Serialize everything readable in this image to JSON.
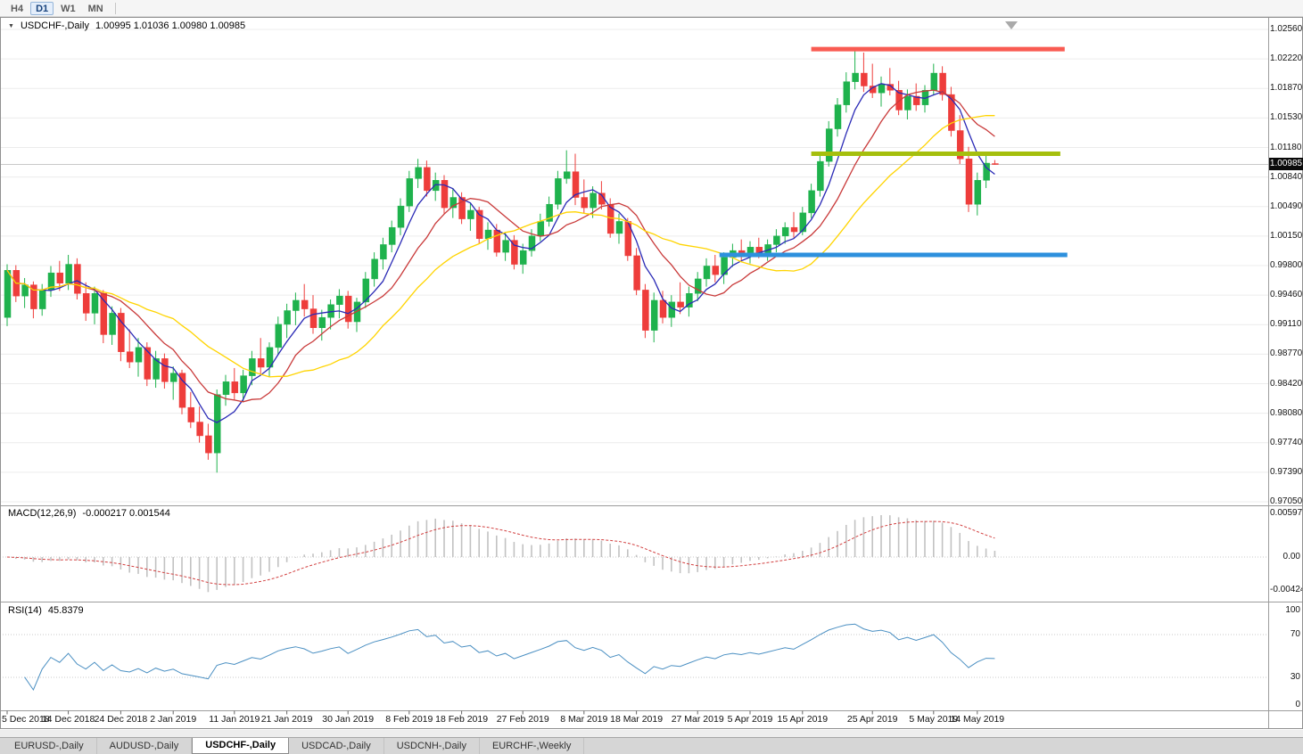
{
  "toolbar": {
    "timeframes": [
      "H4",
      "D1",
      "W1",
      "MN"
    ],
    "active_timeframe": "D1"
  },
  "chart": {
    "collapse_icon": "▼",
    "symbol_title": "USDCHF-,Daily",
    "ohlc_text": "1.00995 1.01036 1.00980 1.00985",
    "current_price": "1.00985",
    "price_scale": [
      "1.02560",
      "1.02220",
      "1.01870",
      "1.01530",
      "1.01180",
      "1.00840",
      "1.00490",
      "1.00150",
      "0.99800",
      "0.99460",
      "0.99110",
      "0.98770",
      "0.98420",
      "0.98080",
      "0.97740",
      "0.97390",
      "0.97050"
    ],
    "macd_label": "MACD(12,26,9)",
    "macd_values": "-0.000217 0.001544",
    "macd_scale": [
      "0.00597",
      "0.00",
      "-0.00424"
    ],
    "rsi_label": "RSI(14)",
    "rsi_value": "45.8379",
    "rsi_scale": [
      "100",
      "70",
      "30",
      "0"
    ]
  },
  "tabs": [
    {
      "label": "EURUSD-,Daily",
      "active": false
    },
    {
      "label": "AUDUSD-,Daily",
      "active": false
    },
    {
      "label": "USDCHF-,Daily",
      "active": true
    },
    {
      "label": "USDCAD-,Daily",
      "active": false
    },
    {
      "label": "USDCNH-,Daily",
      "active": false
    },
    {
      "label": "EURCHF-,Weekly",
      "active": false
    }
  ],
  "chart_data": {
    "type": "candlestick",
    "title": "USDCHF-,Daily",
    "y_range": [
      0.9705,
      1.0256
    ],
    "candle_colors": {
      "bull": "#1fb24d",
      "bear": "#ee3d3b"
    },
    "x_labels": [
      "5 Dec 2018",
      "14 Dec 2018",
      "24 Dec 2018",
      "2 Jan 2019",
      "11 Jan 2019",
      "21 Jan 2019",
      "30 Jan 2019",
      "8 Feb 2019",
      "18 Feb 2019",
      "27 Feb 2019",
      "8 Mar 2019",
      "18 Mar 2019",
      "27 Mar 2019",
      "5 Apr 2019",
      "15 Apr 2019",
      "25 Apr 2019",
      "5 May 2019",
      "14 May 2019"
    ],
    "x_label_bar_indices": [
      0,
      7,
      13,
      19,
      26,
      32,
      39,
      46,
      52,
      59,
      66,
      72,
      79,
      85,
      91,
      99,
      106,
      111
    ],
    "ohlc": [
      [
        0.992,
        0.9982,
        0.991,
        0.9975
      ],
      [
        0.9975,
        0.9981,
        0.9938,
        0.9945
      ],
      [
        0.9945,
        0.9966,
        0.9931,
        0.9958
      ],
      [
        0.9958,
        0.9962,
        0.9919,
        0.993
      ],
      [
        0.993,
        0.9959,
        0.9922,
        0.9952
      ],
      [
        0.9952,
        0.998,
        0.9944,
        0.9972
      ],
      [
        0.9972,
        0.9986,
        0.9951,
        0.996
      ],
      [
        0.996,
        0.9993,
        0.9952,
        0.9982
      ],
      [
        0.9982,
        0.9989,
        0.9941,
        0.9948
      ],
      [
        0.9948,
        0.9961,
        0.9916,
        0.9925
      ],
      [
        0.9925,
        0.9956,
        0.9912,
        0.9948
      ],
      [
        0.9948,
        0.9952,
        0.989,
        0.99
      ],
      [
        0.99,
        0.9933,
        0.9888,
        0.9925
      ],
      [
        0.9925,
        0.9931,
        0.9869,
        0.988
      ],
      [
        0.988,
        0.9906,
        0.9861,
        0.9868
      ],
      [
        0.9868,
        0.9896,
        0.9851,
        0.9885
      ],
      [
        0.9885,
        0.9891,
        0.984,
        0.9848
      ],
      [
        0.9848,
        0.9881,
        0.9838,
        0.9872
      ],
      [
        0.9872,
        0.9878,
        0.9837,
        0.9845
      ],
      [
        0.9845,
        0.9863,
        0.9824,
        0.9855
      ],
      [
        0.9855,
        0.9859,
        0.9807,
        0.9815
      ],
      [
        0.9815,
        0.9833,
        0.9791,
        0.9798
      ],
      [
        0.9798,
        0.9816,
        0.9774,
        0.9782
      ],
      [
        0.9782,
        0.9796,
        0.9754,
        0.9762
      ],
      [
        0.9762,
        0.9836,
        0.9739,
        0.983
      ],
      [
        0.983,
        0.9853,
        0.9817,
        0.9845
      ],
      [
        0.9845,
        0.9861,
        0.9824,
        0.9832
      ],
      [
        0.9832,
        0.9859,
        0.9821,
        0.9852
      ],
      [
        0.9852,
        0.9881,
        0.9841,
        0.9872
      ],
      [
        0.9872,
        0.9896,
        0.9854,
        0.9862
      ],
      [
        0.9862,
        0.9891,
        0.9851,
        0.9885
      ],
      [
        0.9885,
        0.9921,
        0.9876,
        0.9912
      ],
      [
        0.9912,
        0.9936,
        0.9896,
        0.9928
      ],
      [
        0.9928,
        0.9949,
        0.9911,
        0.994
      ],
      [
        0.994,
        0.9959,
        0.9921,
        0.993
      ],
      [
        0.993,
        0.9946,
        0.9901,
        0.9908
      ],
      [
        0.9908,
        0.9929,
        0.9893,
        0.992
      ],
      [
        0.992,
        0.9941,
        0.9906,
        0.9935
      ],
      [
        0.9935,
        0.9953,
        0.9919,
        0.9945
      ],
      [
        0.9945,
        0.9951,
        0.9907,
        0.9915
      ],
      [
        0.9915,
        0.9943,
        0.9903,
        0.9938
      ],
      [
        0.9938,
        0.9973,
        0.9931,
        0.9965
      ],
      [
        0.9965,
        0.9996,
        0.9956,
        0.9988
      ],
      [
        0.9988,
        1.0013,
        0.9976,
        1.0005
      ],
      [
        1.0005,
        1.0033,
        0.9996,
        1.0025
      ],
      [
        1.0025,
        1.0059,
        1.0016,
        1.005
      ],
      [
        1.005,
        1.0091,
        1.0043,
        1.0082
      ],
      [
        1.0082,
        1.0105,
        1.0071,
        1.0095
      ],
      [
        1.0095,
        1.0103,
        1.0061,
        1.0068
      ],
      [
        1.0068,
        1.0089,
        1.0056,
        1.008
      ],
      [
        1.008,
        1.0086,
        1.0041,
        1.0048
      ],
      [
        1.0048,
        1.0071,
        1.0036,
        1.006
      ],
      [
        1.006,
        1.0066,
        1.0029,
        1.0035
      ],
      [
        1.0035,
        1.0053,
        1.0021,
        1.0045
      ],
      [
        1.0045,
        1.0049,
        1.0006,
        1.0012
      ],
      [
        1.0012,
        1.0031,
        0.9999,
        1.0022
      ],
      [
        1.0022,
        1.0029,
        0.9991,
        0.9996
      ],
      [
        0.9996,
        1.0019,
        0.9986,
        1.001
      ],
      [
        1.001,
        1.0016,
        0.9976,
        0.9982
      ],
      [
        0.9982,
        1.0006,
        0.9971,
        0.9998
      ],
      [
        0.9998,
        1.0023,
        0.9991,
        1.0015
      ],
      [
        1.0015,
        1.0041,
        1.0009,
        1.0032
      ],
      [
        1.0032,
        1.0061,
        1.0026,
        1.0052
      ],
      [
        1.0052,
        1.0091,
        1.0046,
        1.0082
      ],
      [
        1.0082,
        1.0115,
        1.0076,
        1.009
      ],
      [
        1.009,
        1.0111,
        1.0051,
        1.006
      ],
      [
        1.006,
        1.0081,
        1.0041,
        1.0048
      ],
      [
        1.0048,
        1.0073,
        1.0036,
        1.0065
      ],
      [
        1.0065,
        1.0079,
        1.0046,
        1.0052
      ],
      [
        1.0052,
        1.0059,
        1.0013,
        1.0018
      ],
      [
        1.0018,
        1.0041,
        1.0006,
        1.0032
      ],
      [
        1.0032,
        1.0036,
        0.9986,
        0.9992
      ],
      [
        0.9992,
        1.0001,
        0.9946,
        0.9952
      ],
      [
        0.9952,
        0.9959,
        0.9896,
        0.9905
      ],
      [
        0.9905,
        0.9949,
        0.9891,
        0.994
      ],
      [
        0.994,
        0.9951,
        0.9913,
        0.992
      ],
      [
        0.992,
        0.9946,
        0.9909,
        0.9938
      ],
      [
        0.9938,
        0.9961,
        0.9924,
        0.9932
      ],
      [
        0.9932,
        0.9956,
        0.9921,
        0.9948
      ],
      [
        0.9948,
        0.9973,
        0.9939,
        0.9965
      ],
      [
        0.9965,
        0.9989,
        0.9956,
        0.998
      ],
      [
        0.998,
        0.9993,
        0.9961,
        0.997
      ],
      [
        0.997,
        0.9996,
        0.9959,
        0.999
      ],
      [
        0.999,
        1.0006,
        0.9979,
        0.9998
      ],
      [
        0.9998,
        1.0011,
        0.9986,
        0.9992
      ],
      [
        0.9992,
        1.0009,
        0.9983,
        1.0002
      ],
      [
        1.0002,
        1.0013,
        0.9989,
        0.9995
      ],
      [
        0.9995,
        1.0011,
        0.9986,
        1.0005
      ],
      [
        1.0005,
        1.0023,
        0.9996,
        1.0015
      ],
      [
        1.0015,
        1.0031,
        1.0006,
        1.0025
      ],
      [
        1.0025,
        1.0043,
        1.0013,
        1.002
      ],
      [
        1.002,
        1.0049,
        1.0016,
        1.0042
      ],
      [
        1.0042,
        1.0076,
        1.0036,
        1.0068
      ],
      [
        1.0068,
        1.0111,
        1.0061,
        1.0102
      ],
      [
        1.0102,
        1.0149,
        1.0096,
        1.014
      ],
      [
        1.014,
        1.0176,
        1.0131,
        1.0168
      ],
      [
        1.0168,
        1.0206,
        1.0159,
        1.0195
      ],
      [
        1.0195,
        1.0232,
        1.0186,
        1.0205
      ],
      [
        1.0205,
        1.0229,
        1.0183,
        1.019
      ],
      [
        1.019,
        1.0216,
        1.0176,
        1.0182
      ],
      [
        1.0182,
        1.0201,
        1.0166,
        1.0192
      ],
      [
        1.0192,
        1.0211,
        1.0179,
        1.0185
      ],
      [
        1.0185,
        1.0196,
        1.0156,
        1.0162
      ],
      [
        1.0162,
        1.0186,
        1.0151,
        1.0178
      ],
      [
        1.0178,
        1.0193,
        1.0161,
        1.0168
      ],
      [
        1.0168,
        1.0191,
        1.0159,
        1.0185
      ],
      [
        1.0185,
        1.0216,
        1.0179,
        1.0205
      ],
      [
        1.0205,
        1.0213,
        1.0173,
        1.018
      ],
      [
        1.018,
        1.0189,
        1.0131,
        1.0138
      ],
      [
        1.0138,
        1.0156,
        1.0099,
        1.0105
      ],
      [
        1.0105,
        1.0119,
        1.0043,
        1.0052
      ],
      [
        1.0052,
        1.0089,
        1.0039,
        1.008
      ],
      [
        1.008,
        1.0109,
        1.0071,
        1.01
      ],
      [
        1.00995,
        1.01036,
        1.0098,
        1.00985
      ]
    ],
    "moving_averages": [
      {
        "name": "fast-ma",
        "period": 5,
        "color": "#2a2ab6"
      },
      {
        "name": "medium-ma",
        "period": 10,
        "color": "#c93a3a"
      },
      {
        "name": "slow-ma",
        "period": 20,
        "color": "#ffd400"
      }
    ],
    "overlay_lines": [
      {
        "name": "resistance-line",
        "price": 1.0233,
        "from_bar": 92,
        "to_bar": 121,
        "color": "#f95b52",
        "width": 5
      },
      {
        "name": "broken-support-line",
        "price": 1.0111,
        "from_bar": 92,
        "to_bar": 120.5,
        "color": "#a5bf0d",
        "width": 5
      },
      {
        "name": "support-line",
        "price": 0.9993,
        "from_bar": 81.5,
        "to_bar": 121.3,
        "color": "#2d90dd",
        "width": 5
      }
    ],
    "indicators": [
      {
        "type": "MACD",
        "fast": 12,
        "slow": 26,
        "signal": 9,
        "histogram_color": "#c2c2c2",
        "signal_color": "#d24040",
        "y_range": [
          -0.00424,
          0.00597
        ],
        "current": "-0.000217 0.001544"
      },
      {
        "type": "RSI",
        "period": 14,
        "color": "#4a8fc2",
        "levels": [
          30,
          70
        ],
        "y_range": [
          0,
          100
        ],
        "current": 45.8379
      }
    ]
  }
}
